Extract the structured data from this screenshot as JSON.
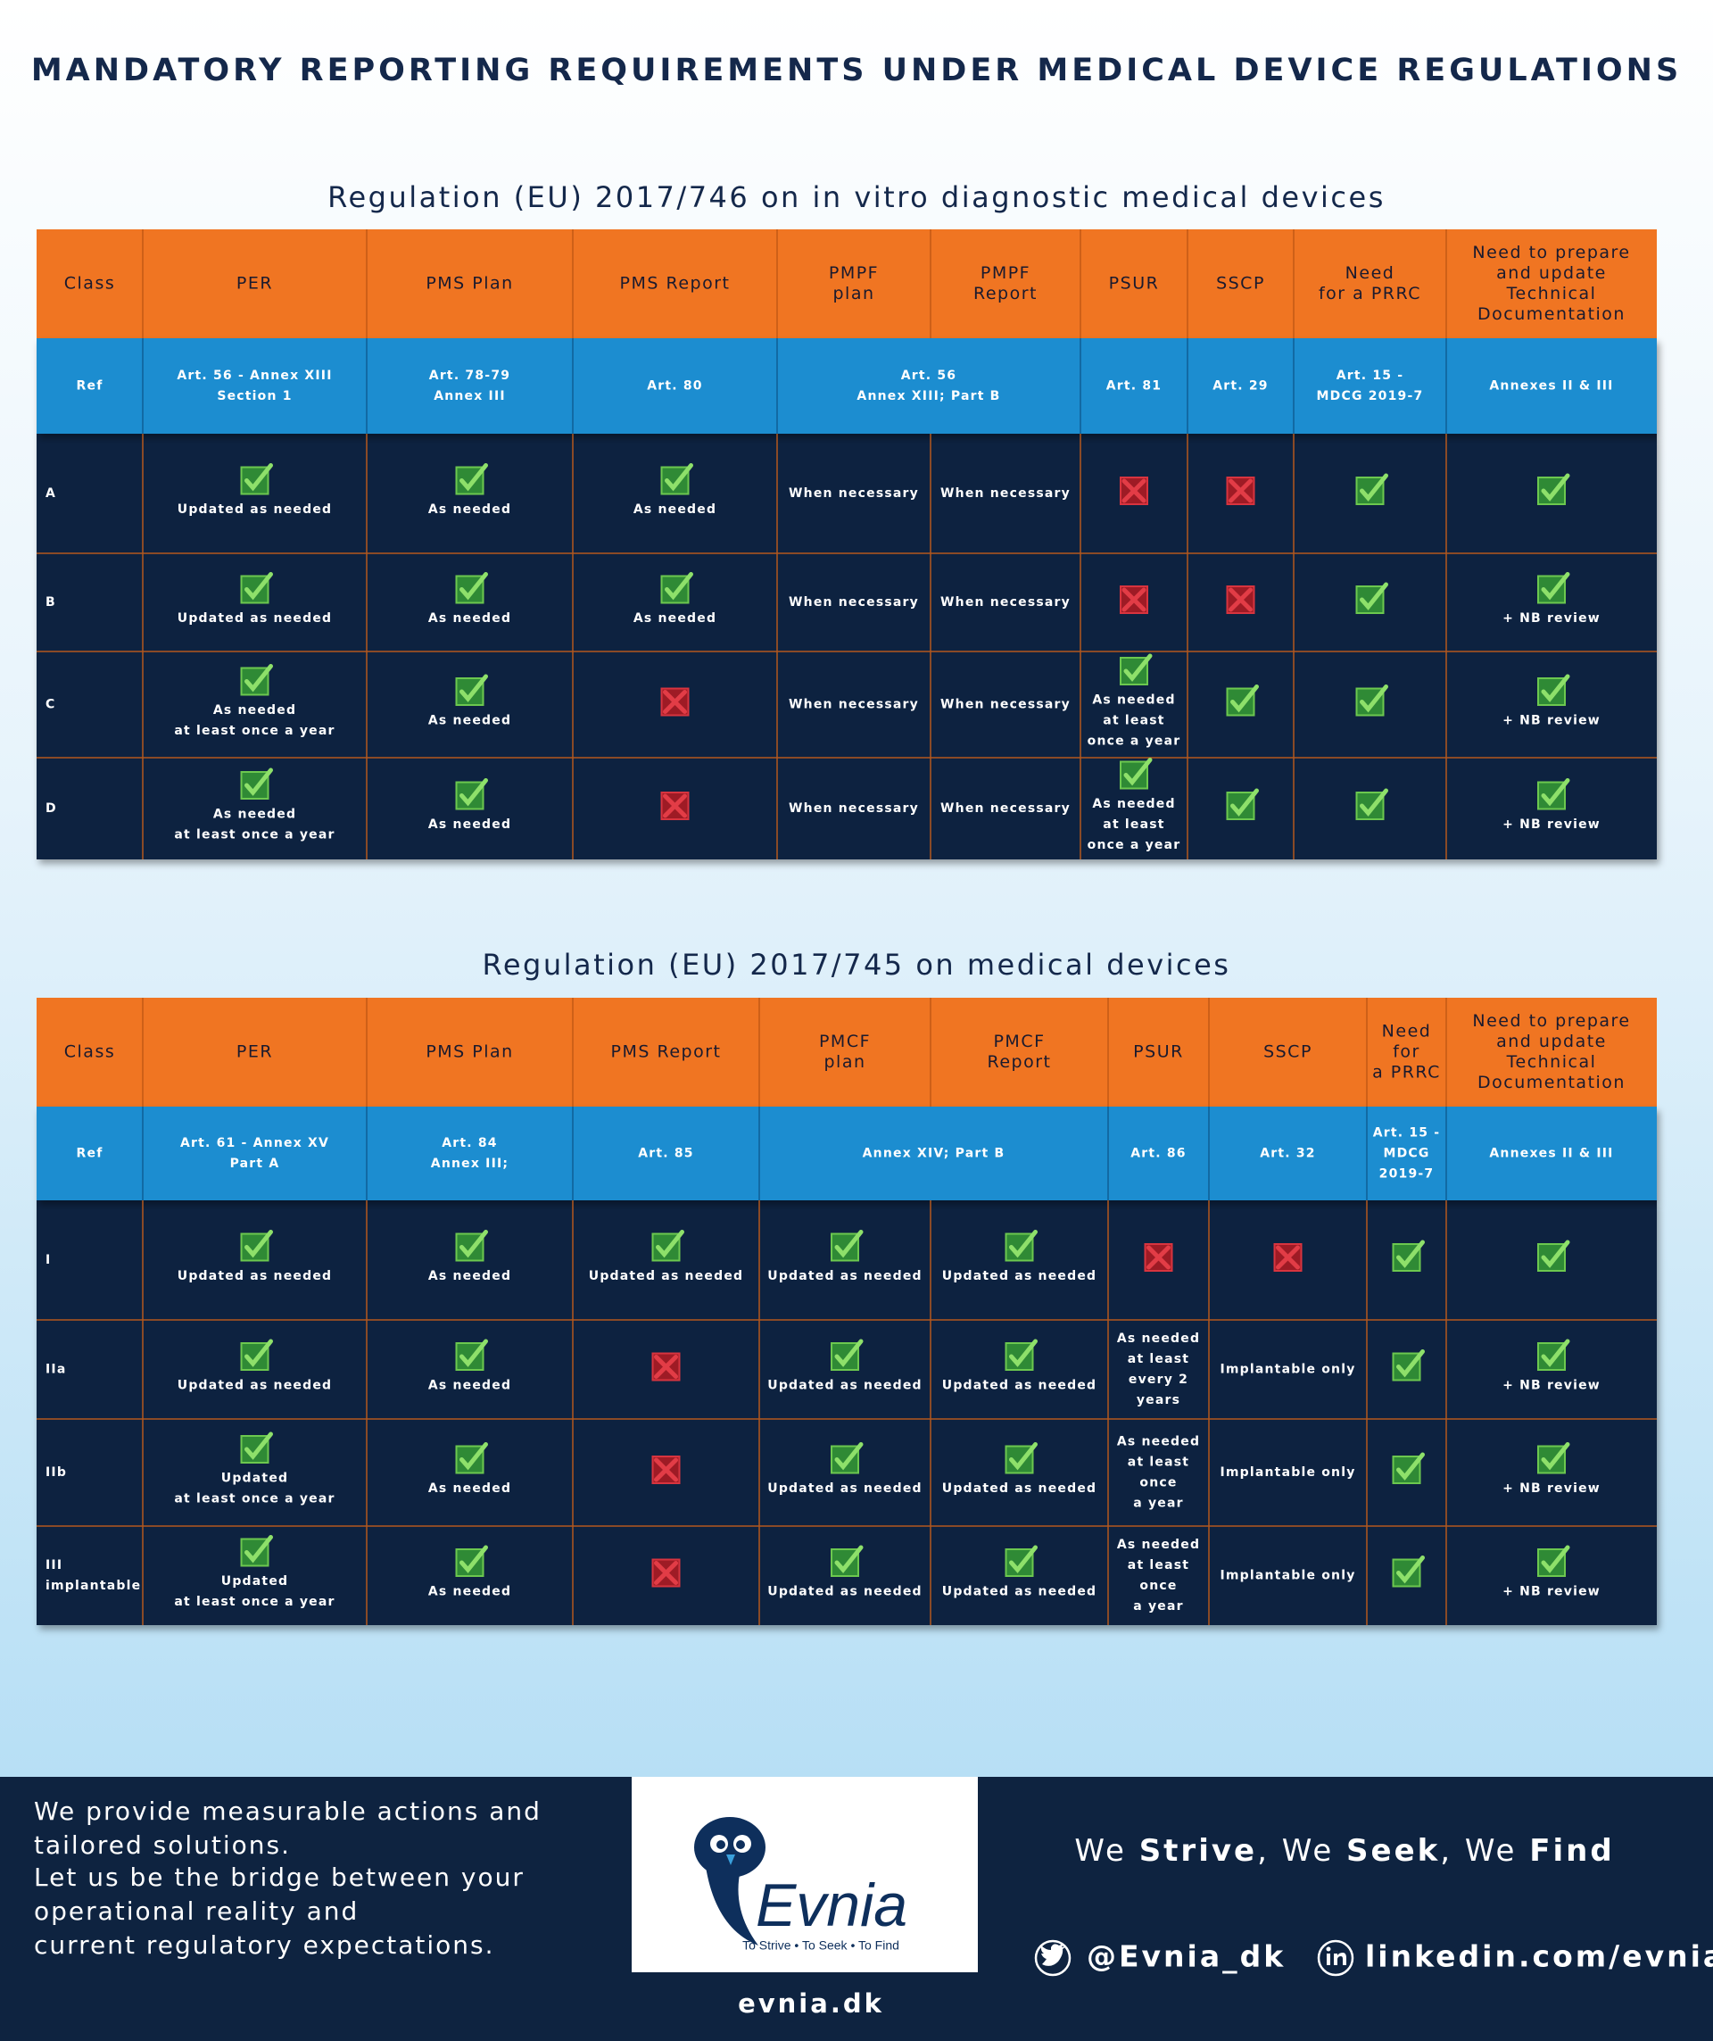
{
  "title": "MANDATORY REPORTING REQUIREMENTS UNDER MEDICAL DEVICE REGULATIONS",
  "tables": [
    {
      "title": "Regulation (EU) 2017/746 on in vitro diagnostic medical devices",
      "headers": [
        [
          "Class"
        ],
        [
          "PER"
        ],
        [
          "PMS Plan"
        ],
        [
          "PMS Report"
        ],
        [
          "PMPF",
          "plan"
        ],
        [
          "PMPF",
          "Report"
        ],
        [
          "PSUR"
        ],
        [
          "SSCP"
        ],
        [
          "Need",
          "for a PRRC"
        ],
        [
          "Need to prepare",
          "and update",
          "Technical",
          "Documentation"
        ]
      ],
      "ref": [
        [
          "Ref"
        ],
        [
          "Art. 56 - Annex XIII",
          "Section 1"
        ],
        [
          "Art. 78-79",
          "Annex III"
        ],
        [
          "Art. 80"
        ],
        [
          "Art. 56",
          "Annex XIII; Part B"
        ],
        [
          "Art. 81"
        ],
        [
          "Art. 29"
        ],
        [
          "Art. 15 -",
          "MDCG 2019-7"
        ],
        [
          "Annexes II & III"
        ]
      ],
      "rows": [
        [
          {
            "lines": [
              "A"
            ]
          },
          {
            "icon": "check",
            "lines": [
              "Updated as needed"
            ]
          },
          {
            "icon": "check",
            "lines": [
              "As needed"
            ]
          },
          {
            "icon": "check",
            "lines": [
              "As needed"
            ]
          },
          {
            "lines": [
              "When necessary"
            ]
          },
          {
            "lines": [
              "When necessary"
            ]
          },
          {
            "icon": "cross"
          },
          {
            "icon": "cross"
          },
          {
            "icon": "check"
          },
          {
            "icon": "check"
          }
        ],
        [
          {
            "lines": [
              "B"
            ]
          },
          {
            "icon": "check",
            "lines": [
              "Updated as needed"
            ]
          },
          {
            "icon": "check",
            "lines": [
              "As needed"
            ]
          },
          {
            "icon": "check",
            "lines": [
              "As needed"
            ]
          },
          {
            "lines": [
              "When necessary"
            ]
          },
          {
            "lines": [
              "When necessary"
            ]
          },
          {
            "icon": "cross"
          },
          {
            "icon": "cross"
          },
          {
            "icon": "check"
          },
          {
            "icon": "check",
            "lines": [
              "+ NB review"
            ]
          }
        ],
        [
          {
            "lines": [
              "C"
            ]
          },
          {
            "icon": "check",
            "lines": [
              "As needed",
              "at least once a year"
            ]
          },
          {
            "icon": "check",
            "lines": [
              "As needed"
            ]
          },
          {
            "icon": "cross"
          },
          {
            "lines": [
              "When necessary"
            ]
          },
          {
            "lines": [
              "When necessary"
            ]
          },
          {
            "icon": "check",
            "lines": [
              "As needed",
              "at least",
              "once a year"
            ]
          },
          {
            "icon": "check"
          },
          {
            "icon": "check"
          },
          {
            "icon": "check",
            "lines": [
              "+ NB review"
            ]
          }
        ],
        [
          {
            "lines": [
              "D"
            ]
          },
          {
            "icon": "check",
            "lines": [
              "As needed",
              "at least once a year"
            ]
          },
          {
            "icon": "check",
            "lines": [
              "As needed"
            ]
          },
          {
            "icon": "cross"
          },
          {
            "lines": [
              "When necessary"
            ]
          },
          {
            "lines": [
              "When necessary"
            ]
          },
          {
            "icon": "check",
            "lines": [
              "As needed",
              "at least",
              "once a year"
            ]
          },
          {
            "icon": "check"
          },
          {
            "icon": "check"
          },
          {
            "icon": "check",
            "lines": [
              "+ NB review"
            ]
          }
        ]
      ]
    },
    {
      "title": "Regulation (EU) 2017/745 on medical devices",
      "headers": [
        [
          "Class"
        ],
        [
          "PER"
        ],
        [
          "PMS Plan"
        ],
        [
          "PMS Report"
        ],
        [
          "PMCF",
          "plan"
        ],
        [
          "PMCF",
          "Report"
        ],
        [
          "PSUR"
        ],
        [
          "SSCP"
        ],
        [
          "Need",
          "for",
          "a PRRC"
        ],
        [
          "Need to prepare",
          "and update",
          "Technical",
          "Documentation"
        ]
      ],
      "ref": [
        [
          "Ref"
        ],
        [
          "Art. 61 - Annex XV",
          "Part A"
        ],
        [
          "Art. 84",
          "Annex III;"
        ],
        [
          "Art. 85"
        ],
        [
          "Annex XIV; Part B"
        ],
        [
          "Art. 86"
        ],
        [
          "Art. 32"
        ],
        [
          "Art. 15 -",
          "MDCG",
          "2019-7"
        ],
        [
          "Annexes II & III"
        ]
      ],
      "rows": [
        [
          {
            "lines": [
              "I"
            ]
          },
          {
            "icon": "check",
            "lines": [
              "Updated as needed"
            ]
          },
          {
            "icon": "check",
            "lines": [
              "As needed"
            ]
          },
          {
            "icon": "check",
            "lines": [
              "Updated as needed"
            ]
          },
          {
            "icon": "check",
            "lines": [
              "Updated as needed"
            ]
          },
          {
            "icon": "check",
            "lines": [
              "Updated as needed"
            ]
          },
          {
            "icon": "cross"
          },
          {
            "icon": "cross"
          },
          {
            "icon": "check"
          },
          {
            "icon": "check"
          }
        ],
        [
          {
            "lines": [
              "IIa"
            ]
          },
          {
            "icon": "check",
            "lines": [
              "Updated as needed"
            ]
          },
          {
            "icon": "check",
            "lines": [
              "As needed"
            ]
          },
          {
            "icon": "cross"
          },
          {
            "icon": "check",
            "lines": [
              "Updated as needed"
            ]
          },
          {
            "icon": "check",
            "lines": [
              "Updated as needed"
            ]
          },
          {
            "lines": [
              "As needed",
              "at least",
              "every 2",
              "years"
            ]
          },
          {
            "lines": [
              "Implantable only"
            ]
          },
          {
            "icon": "check"
          },
          {
            "icon": "check",
            "lines": [
              "+ NB review"
            ]
          }
        ],
        [
          {
            "lines": [
              "IIb"
            ]
          },
          {
            "icon": "check",
            "lines": [
              "Updated",
              "at least once a year"
            ]
          },
          {
            "icon": "check",
            "lines": [
              "As needed"
            ]
          },
          {
            "icon": "cross"
          },
          {
            "icon": "check",
            "lines": [
              "Updated as needed"
            ]
          },
          {
            "icon": "check",
            "lines": [
              "Updated as needed"
            ]
          },
          {
            "lines": [
              "As needed",
              "at least",
              "once",
              "a year"
            ]
          },
          {
            "lines": [
              "Implantable only"
            ]
          },
          {
            "icon": "check"
          },
          {
            "icon": "check",
            "lines": [
              "+ NB review"
            ]
          }
        ],
        [
          {
            "lines": [
              "III",
              "implantable"
            ]
          },
          {
            "icon": "check",
            "lines": [
              "Updated",
              "at least once a year"
            ]
          },
          {
            "icon": "check",
            "lines": [
              "As needed"
            ]
          },
          {
            "icon": "cross"
          },
          {
            "icon": "check",
            "lines": [
              "Updated as needed"
            ]
          },
          {
            "icon": "check",
            "lines": [
              "Updated as needed"
            ]
          },
          {
            "lines": [
              "As needed",
              "at least",
              "once",
              "a year"
            ]
          },
          {
            "lines": [
              "Implantable only"
            ]
          },
          {
            "icon": "check"
          },
          {
            "icon": "check",
            "lines": [
              "+ NB review"
            ]
          }
        ]
      ]
    }
  ],
  "footer": {
    "pitch": [
      "We provide measurable actions and",
      "tailored solutions.",
      "Let us be the bridge between your",
      "operational reality and",
      "current regulatory expectations."
    ],
    "logo": {
      "name": "Evnia",
      "motto": "To Strive • To Seek • To Find"
    },
    "website": "evnia.dk",
    "tagline": [
      "We ",
      "Strive",
      ", We ",
      "Seek",
      ", We ",
      "Find"
    ],
    "twitter": "@Evnia_dk",
    "linkedin": "linkedin.com/evnia"
  }
}
